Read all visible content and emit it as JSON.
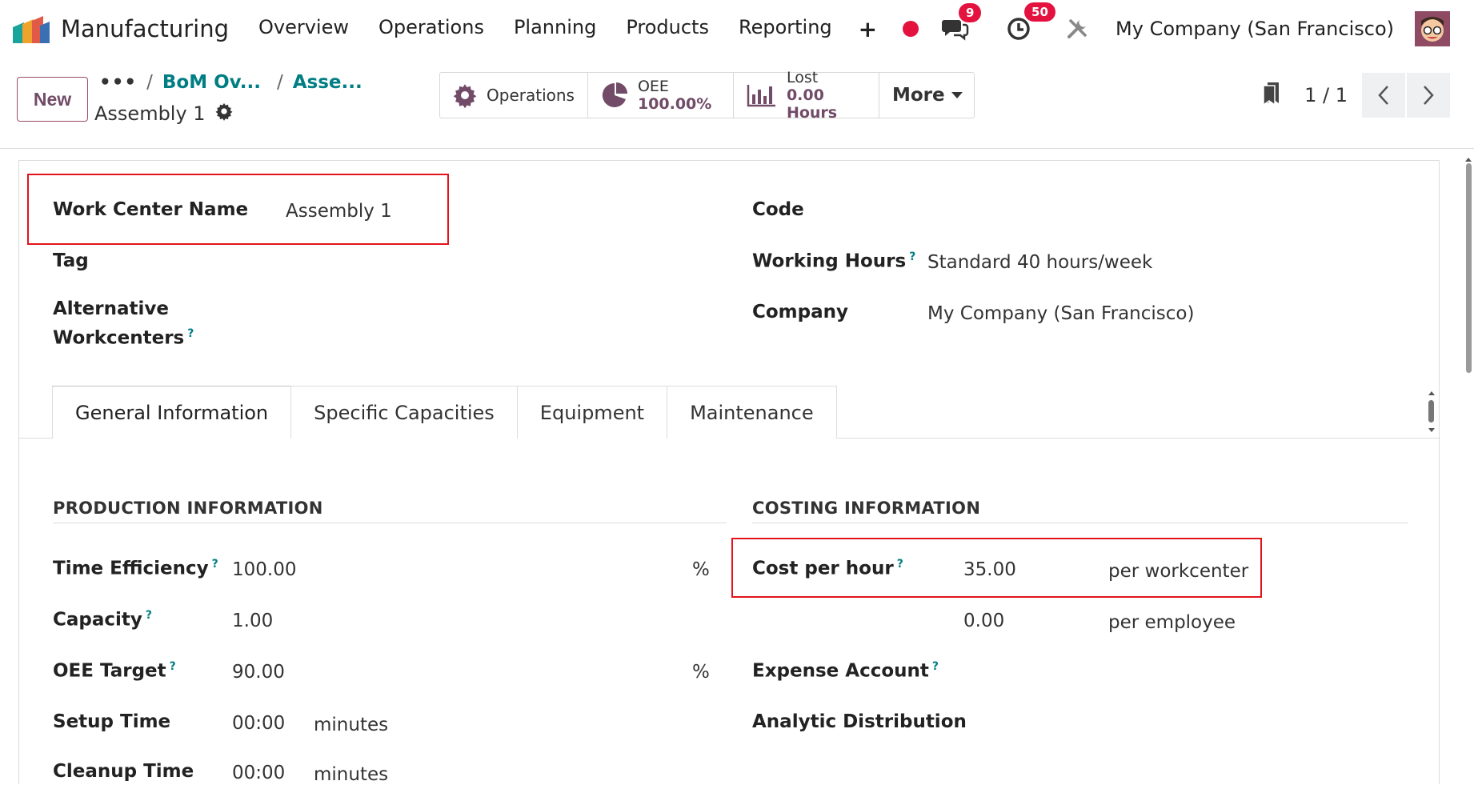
{
  "navbar": {
    "app_title": "Manufacturing",
    "menu": [
      "Overview",
      "Operations",
      "Planning",
      "Products",
      "Reporting"
    ],
    "plus": "+",
    "messages_count": "9",
    "activities_count": "50",
    "company": "My Company (San Francisco)"
  },
  "control": {
    "new_label": "New",
    "breadcrumb_dots": "•••",
    "breadcrumbs": [
      "BoM Ov...",
      "Asse..."
    ],
    "record_name": "Assembly 1",
    "smart": {
      "operations": "Operations",
      "oee_label": "OEE",
      "oee_value": "100.00%",
      "lost_label": "Lost",
      "lost_value": "0.00 Hours",
      "more": "More"
    },
    "pager": "1 / 1"
  },
  "form": {
    "work_center_name_label": "Work Center Name",
    "work_center_name": "Assembly 1",
    "tag_label": "Tag",
    "alt_label_1": "Alternative",
    "alt_label_2": "Workcenters",
    "code_label": "Code",
    "working_hours_label": "Working Hours",
    "working_hours": "Standard 40 hours/week",
    "company_label": "Company",
    "company": "My Company (San Francisco)",
    "help_mark": "?"
  },
  "tabs": [
    "General Information",
    "Specific Capacities",
    "Equipment",
    "Maintenance"
  ],
  "production": {
    "title": "PRODUCTION INFORMATION",
    "time_efficiency_label": "Time Efficiency",
    "time_efficiency": "100.00",
    "percent": "%",
    "capacity_label": "Capacity",
    "capacity": "1.00",
    "oee_target_label": "OEE Target",
    "oee_target": "90.00",
    "setup_time_label": "Setup Time",
    "setup_time": "00:00",
    "minutes": "minutes",
    "cleanup_label": "Cleanup Time",
    "cleanup_time": "00:00"
  },
  "costing": {
    "title": "COSTING INFORMATION",
    "cost_per_hour_label": "Cost per hour",
    "cost_per_hour": "35.00",
    "per_workcenter": "per workcenter",
    "employee_cost": "0.00",
    "per_employee": "per employee",
    "expense_account_label": "Expense Account",
    "analytic_label": "Analytic Distribution"
  },
  "colors": {
    "brand": "#714b67",
    "link": "#017e84",
    "badge": "#e3123f",
    "highlight": "#e3131b"
  }
}
